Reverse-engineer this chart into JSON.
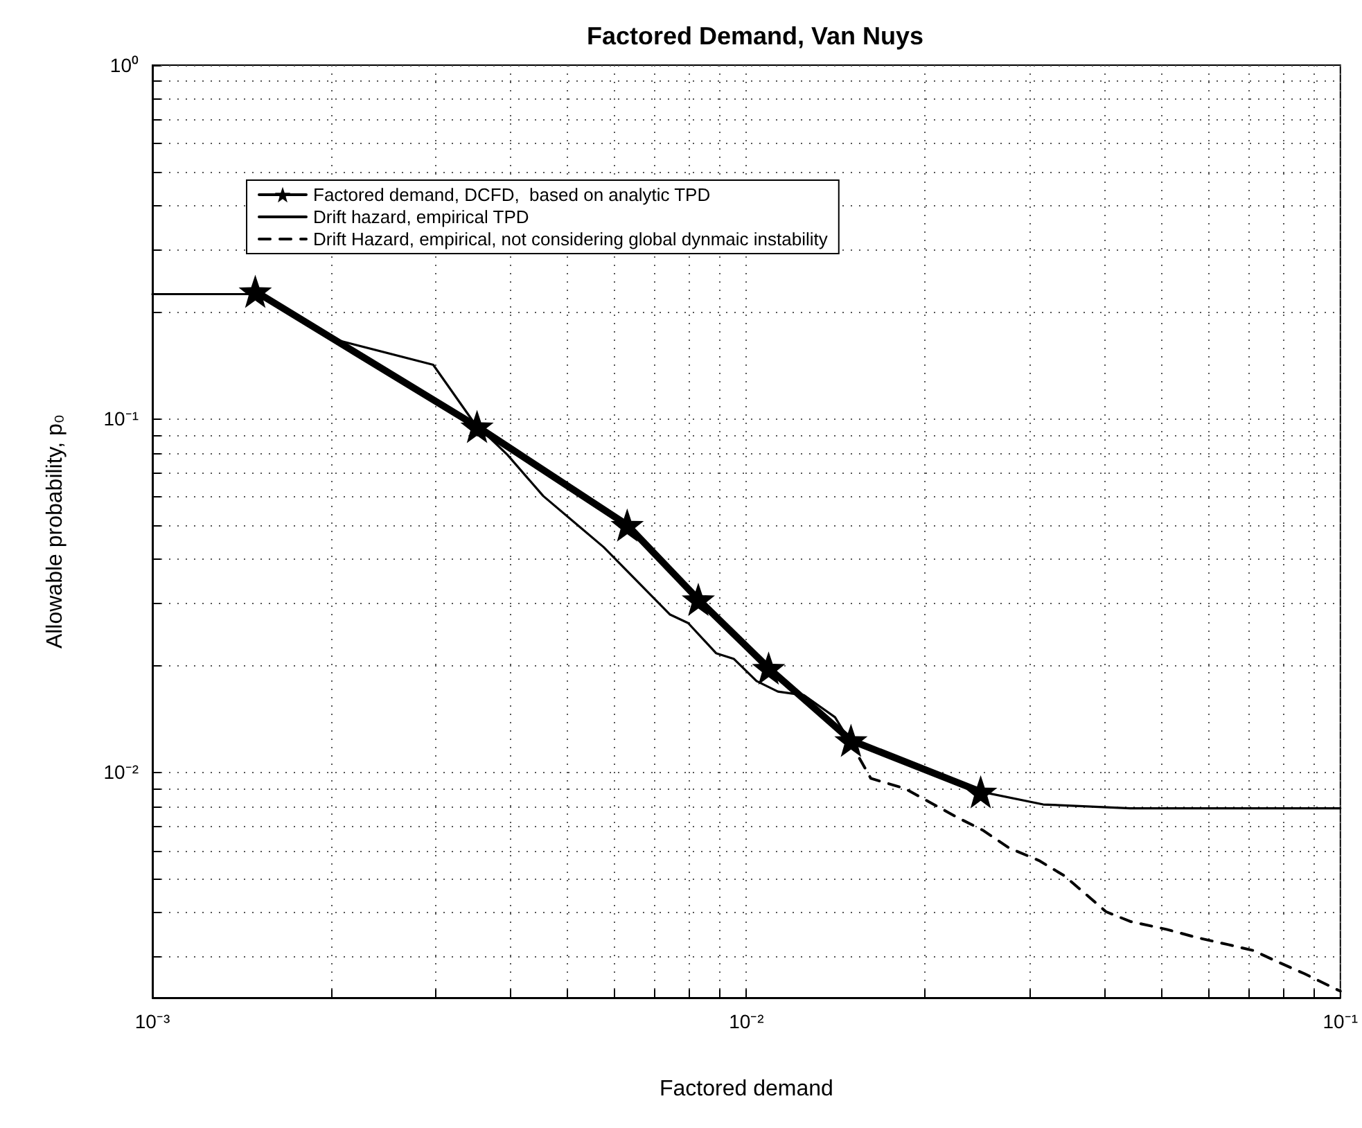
{
  "chart_data": {
    "type": "line",
    "title": "Factored Demand, Van Nuys",
    "xlabel": "Factored demand",
    "ylabel": "Allowable probability, p₀",
    "log": "xy",
    "grid": true,
    "legend": "top left",
    "xlim": [
      0.001,
      0.1
    ],
    "ylim": [
      0.0023,
      1
    ],
    "xticks": [
      {
        "value": 0.001,
        "label": "10⁻³"
      },
      {
        "value": 0.002,
        "label": null
      },
      {
        "value": 0.003,
        "label": null
      },
      {
        "value": 0.004,
        "label": null
      },
      {
        "value": 0.005,
        "label": null
      },
      {
        "value": 0.006,
        "label": null
      },
      {
        "value": 0.007,
        "label": null
      },
      {
        "value": 0.008,
        "label": null
      },
      {
        "value": 0.009,
        "label": null
      },
      {
        "value": 0.01,
        "label": "10⁻²"
      },
      {
        "value": 0.02,
        "label": null
      },
      {
        "value": 0.03,
        "label": null
      },
      {
        "value": 0.04,
        "label": null
      },
      {
        "value": 0.05,
        "label": null
      },
      {
        "value": 0.06,
        "label": null
      },
      {
        "value": 0.07,
        "label": null
      },
      {
        "value": 0.08,
        "label": null
      },
      {
        "value": 0.09,
        "label": null
      },
      {
        "value": 0.1,
        "label": "10⁻¹"
      }
    ],
    "yticks": [
      {
        "value": 0.003,
        "label": null
      },
      {
        "value": 0.004,
        "label": null
      },
      {
        "value": 0.005,
        "label": null
      },
      {
        "value": 0.006,
        "label": null
      },
      {
        "value": 0.007,
        "label": null
      },
      {
        "value": 0.008,
        "label": null
      },
      {
        "value": 0.009,
        "label": null
      },
      {
        "value": 0.01,
        "label": "10⁻²"
      },
      {
        "value": 0.02,
        "label": null
      },
      {
        "value": 0.03,
        "label": null
      },
      {
        "value": 0.04,
        "label": null
      },
      {
        "value": 0.05,
        "label": null
      },
      {
        "value": 0.06,
        "label": null
      },
      {
        "value": 0.07,
        "label": null
      },
      {
        "value": 0.08,
        "label": null
      },
      {
        "value": 0.09,
        "label": null
      },
      {
        "value": 0.1,
        "label": "10⁻¹"
      },
      {
        "value": 0.2,
        "label": null
      },
      {
        "value": 0.3,
        "label": null
      },
      {
        "value": 0.4,
        "label": null
      },
      {
        "value": 0.5,
        "label": null
      },
      {
        "value": 0.6,
        "label": null
      },
      {
        "value": 0.7,
        "label": null
      },
      {
        "value": 0.8,
        "label": null
      },
      {
        "value": 0.9,
        "label": null
      },
      {
        "value": 1,
        "label": "10⁰"
      }
    ],
    "series": [
      {
        "name": "Factored demand, DCFD,  based on analytic TPD",
        "color": "#000000",
        "marker": "star",
        "line_style": "solid",
        "x": [
          0.00149,
          0.00352,
          0.0063,
          0.0083,
          0.0109,
          0.015,
          0.0248
        ],
        "values": [
          0.229,
          0.095,
          0.05,
          0.0308,
          0.0197,
          0.0123,
          0.0088
        ]
      },
      {
        "name": "Drift hazard, empirical TPD",
        "color": "#000000",
        "marker": "none",
        "line_style": "solid",
        "x": [
          0.001,
          0.00149,
          0.00204,
          0.00297,
          0.00348,
          0.00396,
          0.00455,
          0.00575,
          0.00744,
          0.00798,
          0.00889,
          0.00953,
          0.0104,
          0.0113,
          0.0125,
          0.0141,
          0.0149,
          0.0248,
          0.0316,
          0.0443,
          0.1
        ],
        "values": [
          0.225,
          0.225,
          0.167,
          0.142,
          0.0973,
          0.079,
          0.0604,
          0.0433,
          0.0279,
          0.0264,
          0.0217,
          0.0209,
          0.0181,
          0.0169,
          0.0165,
          0.0143,
          0.0123,
          0.0088,
          0.0081,
          0.0079,
          0.0079
        ]
      },
      {
        "name": "Drift Hazard, empirical, not considering global dynmaic instability",
        "color": "#000000",
        "marker": "none",
        "line_style": "dashed",
        "x": [
          0.0149,
          0.0162,
          0.0185,
          0.0227,
          0.025,
          0.0277,
          0.0311,
          0.0343,
          0.0372,
          0.0403,
          0.0443,
          0.051,
          0.0575,
          0.0648,
          0.0713,
          0.079,
          0.087,
          0.1
        ],
        "values": [
          0.0123,
          0.0096,
          0.00898,
          0.00743,
          0.00685,
          0.0061,
          0.00562,
          0.00509,
          0.00453,
          0.00403,
          0.00378,
          0.00359,
          0.0034,
          0.00325,
          0.00313,
          0.00289,
          0.00269,
          0.0024
        ]
      }
    ]
  }
}
